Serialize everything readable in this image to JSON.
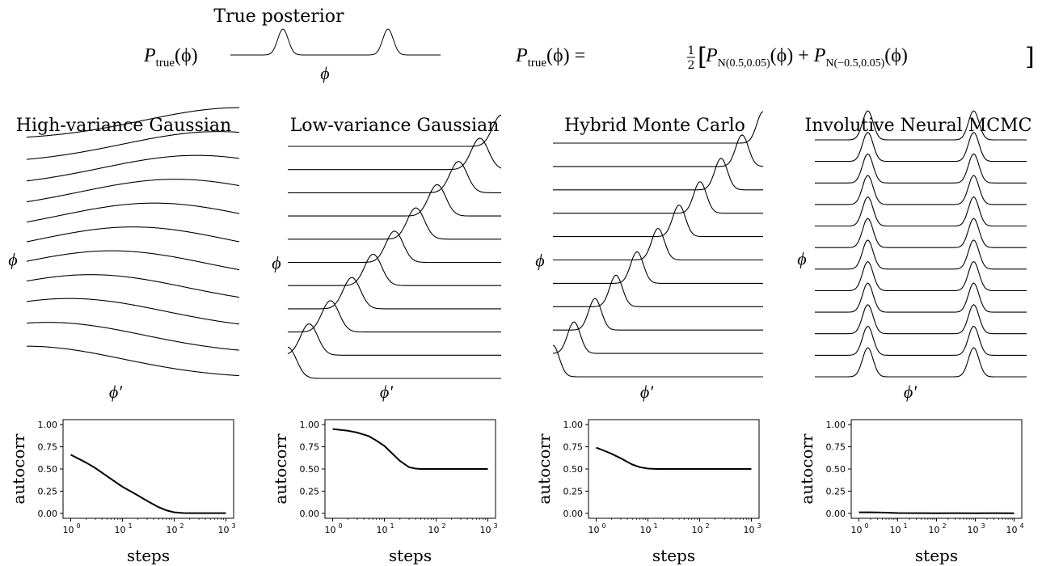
{
  "header": {
    "title": "True posterior",
    "lhs": "P",
    "lhs_sub": "true",
    "lhs_arg": "(ϕ)",
    "axis_label": "ϕ",
    "equation": {
      "lhs": "P",
      "lhs_sub": "true",
      "lhs_arg": "(ϕ) =",
      "half_num": "1",
      "half_den": "2",
      "term1": "P",
      "term1_sub": "N(0.5,0.05)",
      "term1_arg": "(ϕ) +",
      "term2": "P",
      "term2_sub": "N(−0.5,0.05)",
      "term2_arg": "(ϕ)"
    }
  },
  "true_posterior": {
    "modes": [
      -0.5,
      0.5
    ],
    "sigma": 0.05
  },
  "colors": {
    "line": "#000000",
    "axis": "#000000",
    "background": "#ffffff"
  },
  "panels": [
    {
      "title": "High-variance Gaussian",
      "y_label": "ϕ",
      "x_label": "ϕ′",
      "kernel": "gaussian",
      "sigma": 0.9,
      "phi_values": [
        -1.0,
        -0.8,
        -0.6,
        -0.4,
        -0.2,
        0.0,
        0.2,
        0.4,
        0.6,
        0.8,
        1.0
      ]
    },
    {
      "title": "Low-variance Gaussian",
      "y_label": "ϕ",
      "x_label": "ϕ′",
      "kernel": "gaussian",
      "sigma": 0.08,
      "phi_values": [
        -1.0,
        -0.8,
        -0.6,
        -0.4,
        -0.2,
        0.0,
        0.2,
        0.4,
        0.6,
        0.8,
        1.0
      ]
    },
    {
      "title": "Hybrid Monte Carlo",
      "y_label": "ϕ",
      "x_label": "ϕ′",
      "kernel": "hmc",
      "sigma": 0.06,
      "phi_values": [
        -1.0,
        -0.8,
        -0.6,
        -0.4,
        -0.2,
        0.0,
        0.2,
        0.4,
        0.6,
        0.8,
        1.0
      ]
    },
    {
      "title": "Involutive Neural MCMC",
      "y_label": "ϕ",
      "x_label": "ϕ′",
      "kernel": "bimodal",
      "sigma": 0.05,
      "phi_values": [
        -1.0,
        -0.8,
        -0.6,
        -0.4,
        -0.2,
        0.0,
        0.2,
        0.4,
        0.6,
        0.8,
        1.0,
        1.2
      ]
    }
  ],
  "chart_data": [
    {
      "type": "line",
      "title": "",
      "xlabel": "steps",
      "ylabel": "autocorr",
      "x_scale": "log",
      "xlim": [
        1,
        1000
      ],
      "ylim": [
        0.0,
        1.0
      ],
      "y_ticks": [
        "0.00",
        "0.25",
        "0.50",
        "0.75",
        "1.00"
      ],
      "x_ticks": [
        "10",
        "10",
        "10",
        "10"
      ],
      "x_tick_exps": [
        "0",
        "1",
        "2",
        "3"
      ],
      "x_tick_values": [
        1,
        10,
        100,
        1000
      ],
      "series": [
        {
          "x": [
            1,
            2,
            3,
            5,
            10,
            20,
            30,
            50,
            70,
            100,
            150,
            200,
            300,
            500,
            1000
          ],
          "values": [
            0.66,
            0.57,
            0.51,
            0.42,
            0.3,
            0.2,
            0.14,
            0.07,
            0.035,
            0.012,
            0.004,
            0.003,
            0.003,
            0.003,
            0.003
          ]
        }
      ],
      "grid": false
    },
    {
      "type": "line",
      "title": "",
      "xlabel": "steps",
      "ylabel": "autocorr",
      "x_scale": "log",
      "xlim": [
        1,
        1000
      ],
      "ylim": [
        0.0,
        1.0
      ],
      "y_ticks": [
        "0.00",
        "0.25",
        "0.50",
        "0.75",
        "1.00"
      ],
      "x_ticks": [
        "10",
        "10",
        "10",
        "10"
      ],
      "x_tick_exps": [
        "0",
        "1",
        "2",
        "3"
      ],
      "x_tick_values": [
        1,
        10,
        100,
        1000
      ],
      "series": [
        {
          "x": [
            1,
            2,
            3,
            5,
            7,
            10,
            15,
            20,
            30,
            40,
            50,
            100,
            300,
            1000
          ],
          "values": [
            0.95,
            0.93,
            0.91,
            0.87,
            0.82,
            0.76,
            0.66,
            0.59,
            0.52,
            0.505,
            0.5,
            0.5,
            0.5,
            0.5
          ]
        }
      ],
      "grid": false
    },
    {
      "type": "line",
      "title": "",
      "xlabel": "steps",
      "ylabel": "autocorr",
      "x_scale": "log",
      "xlim": [
        1,
        1000
      ],
      "ylim": [
        0.0,
        1.0
      ],
      "y_ticks": [
        "0.00",
        "0.25",
        "0.50",
        "0.75",
        "1.00"
      ],
      "x_ticks": [
        "10",
        "10",
        "10",
        "10"
      ],
      "x_tick_exps": [
        "0",
        "1",
        "2",
        "3"
      ],
      "x_tick_values": [
        1,
        10,
        100,
        1000
      ],
      "series": [
        {
          "x": [
            1,
            1.5,
            2,
            3,
            4,
            5,
            7,
            10,
            15,
            20,
            50,
            100,
            300,
            1000
          ],
          "values": [
            0.74,
            0.7,
            0.67,
            0.62,
            0.58,
            0.55,
            0.52,
            0.505,
            0.5,
            0.5,
            0.5,
            0.5,
            0.5,
            0.5
          ]
        }
      ],
      "grid": false
    },
    {
      "type": "line",
      "title": "",
      "xlabel": "steps",
      "ylabel": "autocorr",
      "x_scale": "log",
      "xlim": [
        1,
        10000
      ],
      "ylim": [
        0.0,
        1.0
      ],
      "y_ticks": [
        "0.00",
        "0.25",
        "0.50",
        "0.75",
        "1.00"
      ],
      "x_ticks": [
        "10",
        "10",
        "10",
        "10",
        "10"
      ],
      "x_tick_exps": [
        "0",
        "1",
        "2",
        "3",
        "4"
      ],
      "x_tick_values": [
        1,
        10,
        100,
        1000,
        10000
      ],
      "series": [
        {
          "x": [
            1,
            2,
            3,
            5,
            10,
            30,
            100,
            300,
            1000,
            3000,
            10000
          ],
          "values": [
            0.012,
            0.012,
            0.011,
            0.008,
            0.004,
            0.003,
            0.002,
            0.003,
            0.002,
            0.003,
            0.002
          ]
        }
      ],
      "grid": false
    }
  ]
}
